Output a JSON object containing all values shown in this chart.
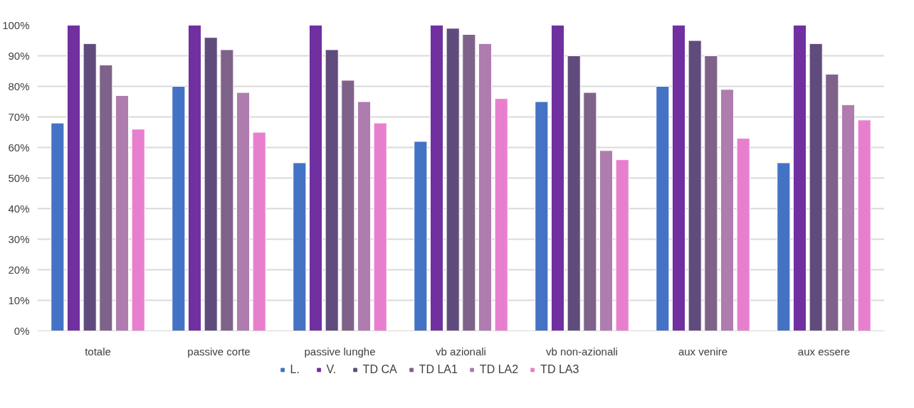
{
  "chart_data": {
    "type": "bar",
    "categories": [
      "totale",
      "passive corte",
      "passive lunghe",
      "vb azionali",
      "vb non-azionali",
      "aux venire",
      "aux essere"
    ],
    "series": [
      {
        "name": "L.",
        "color": "#4472c4",
        "values": [
          68,
          80,
          55,
          62,
          75,
          80,
          55
        ]
      },
      {
        "name": "V.",
        "color": "#7030a0",
        "values": [
          100,
          100,
          100,
          100,
          100,
          100,
          100
        ]
      },
      {
        "name": "TD CA",
        "color": "#604c7c",
        "values": [
          94,
          96,
          92,
          99,
          90,
          95,
          94
        ]
      },
      {
        "name": "TD LA1",
        "color": "#7f6289",
        "values": [
          87,
          92,
          82,
          97,
          78,
          90,
          84
        ]
      },
      {
        "name": "TD LA2",
        "color": "#ae7cae",
        "values": [
          77,
          78,
          75,
          94,
          59,
          79,
          74
        ]
      },
      {
        "name": "TD LA3",
        "color": "#e87fce",
        "values": [
          66,
          65,
          68,
          76,
          56,
          63,
          69
        ]
      }
    ],
    "ylim": [
      0,
      100
    ],
    "yticks": [
      {
        "value": 0,
        "label": "0%"
      },
      {
        "value": 10,
        "label": "10%"
      },
      {
        "value": 20,
        "label": "20%"
      },
      {
        "value": 30,
        "label": "30%"
      },
      {
        "value": 40,
        "label": "40%"
      },
      {
        "value": 50,
        "label": "50%"
      },
      {
        "value": 60,
        "label": "60%"
      },
      {
        "value": 70,
        "label": "70%"
      },
      {
        "value": 80,
        "label": "80%"
      },
      {
        "value": 90,
        "label": "90%"
      },
      {
        "value": 100,
        "label": "100%"
      }
    ],
    "grid": "y",
    "legend": "bottom"
  }
}
